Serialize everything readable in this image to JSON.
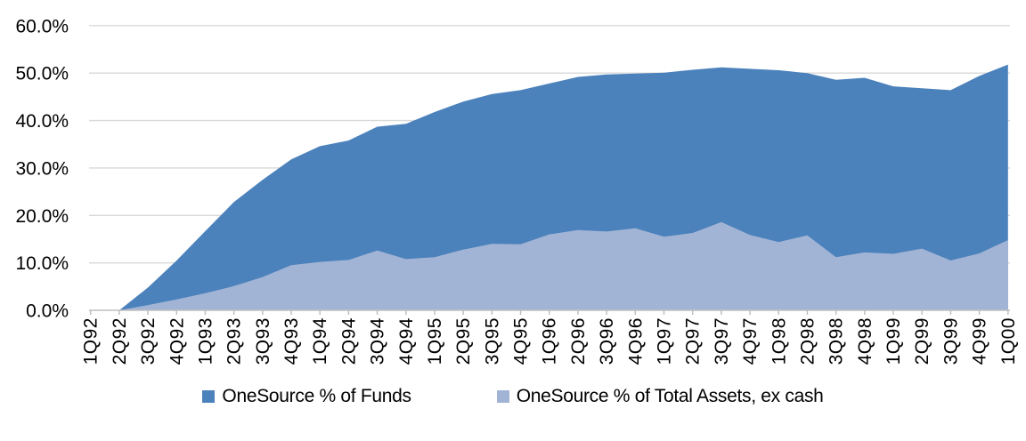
{
  "chart_data": {
    "type": "area",
    "mode": "overlay",
    "title": "",
    "xlabel": "",
    "ylabel": "",
    "ylim": [
      0,
      60
    ],
    "grid": "horizontal",
    "legend_position": "bottom-center",
    "ytick_labels": [
      "0.0%",
      "10.0%",
      "20.0%",
      "30.0%",
      "40.0%",
      "50.0%",
      "60.0%"
    ],
    "ytick_values": [
      0,
      10,
      20,
      30,
      40,
      50,
      60
    ],
    "categories": [
      "1Q92",
      "2Q92",
      "3Q92",
      "4Q92",
      "1Q93",
      "2Q93",
      "3Q93",
      "4Q93",
      "1Q94",
      "2Q94",
      "3Q94",
      "4Q94",
      "1Q95",
      "2Q95",
      "3Q95",
      "4Q95",
      "1Q96",
      "2Q96",
      "3Q96",
      "4Q96",
      "1Q97",
      "2Q97",
      "3Q97",
      "4Q97",
      "1Q98",
      "2Q98",
      "3Q98",
      "4Q98",
      "1Q99",
      "2Q99",
      "3Q99",
      "4Q99",
      "1Q00"
    ],
    "series": [
      {
        "name": "OneSource % of Funds",
        "color": "#4C82BC",
        "values": [
          0.0,
          0.0,
          4.8,
          10.5,
          16.7,
          22.8,
          27.5,
          31.8,
          34.6,
          35.8,
          38.7,
          39.3,
          41.8,
          44.0,
          45.6,
          46.4,
          47.8,
          49.2,
          49.7,
          49.9,
          50.1,
          50.7,
          51.2,
          50.9,
          50.6,
          50.0,
          48.6,
          49.0,
          47.2,
          46.8,
          46.4,
          49.4,
          51.8
        ]
      },
      {
        "name": "OneSource % of Total Assets, ex cash",
        "color": "#A2B4D5",
        "values": [
          0.0,
          0.0,
          1.1,
          2.3,
          3.6,
          5.1,
          7.0,
          9.5,
          10.2,
          10.6,
          12.6,
          10.8,
          11.2,
          12.8,
          14.0,
          13.9,
          16.0,
          16.9,
          16.6,
          17.3,
          15.5,
          16.3,
          18.6,
          15.9,
          14.4,
          15.8,
          11.2,
          12.2,
          11.9,
          13.0,
          10.5,
          12.0,
          14.8
        ]
      }
    ],
    "colors": {
      "gridline": "#D9D9D9",
      "axis": "#BFBFBF",
      "text": "#000000"
    }
  }
}
